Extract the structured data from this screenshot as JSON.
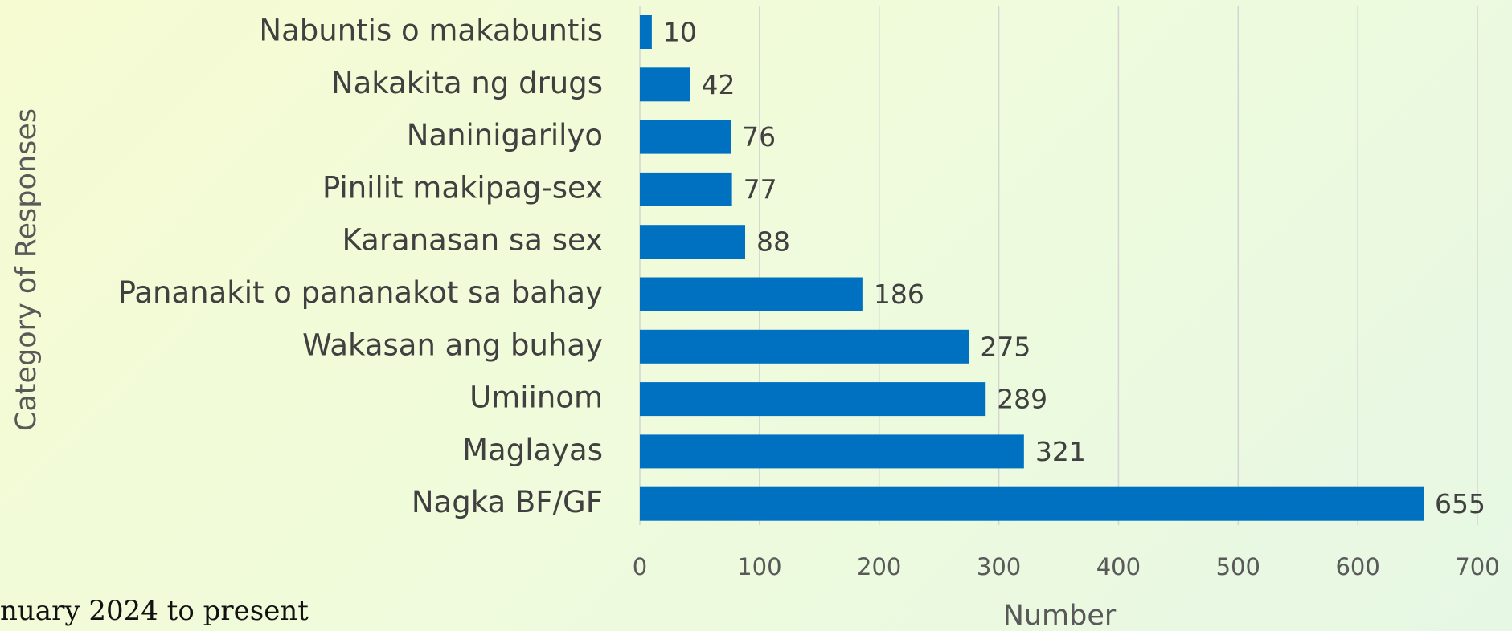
{
  "chart_data": {
    "type": "bar",
    "orientation": "horizontal",
    "categories": [
      "Nabuntis o makabuntis",
      "Nakakita ng drugs",
      "Naninigarilyo",
      "Pinilit makipag-sex",
      "Karanasan sa sex",
      "Pananakit o pananakot sa bahay",
      "Wakasan ang buhay",
      "Umiinom",
      "Maglayas",
      "Nagka BF/GF"
    ],
    "values": [
      10,
      42,
      76,
      77,
      88,
      186,
      275,
      289,
      321,
      655
    ],
    "color": "#0070c0",
    "xlim": [
      0,
      700
    ],
    "xticks": [
      0,
      100,
      200,
      300,
      400,
      500,
      600,
      700
    ],
    "grid": true,
    "x_label": "Number",
    "y_label": "Category of Responses",
    "footnote": "nuary 2024 to present"
  }
}
